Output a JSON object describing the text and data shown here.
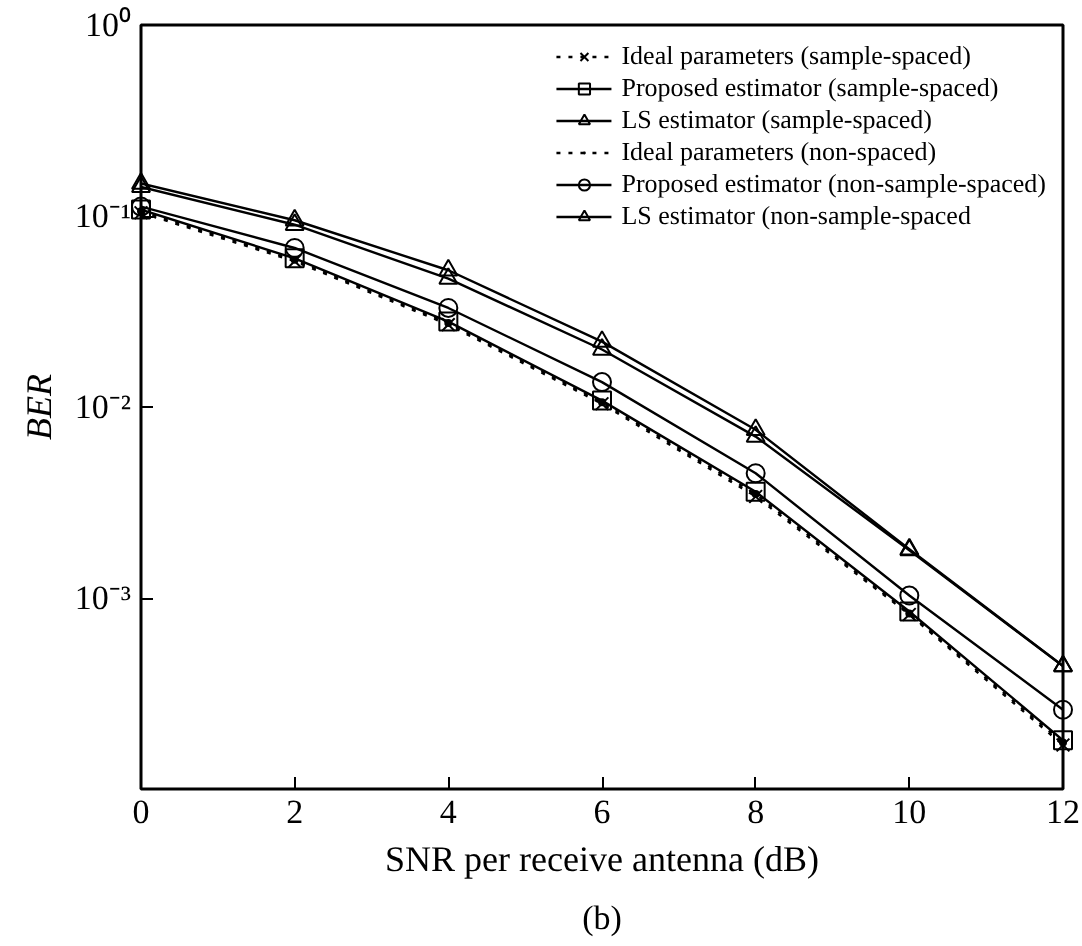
{
  "chart_data": {
    "type": "line",
    "xlabel": "SNR per receive antenna (dB)",
    "ylabel": "BER",
    "annotations": [
      "(b)"
    ],
    "x": [
      0,
      2,
      4,
      6,
      8,
      10,
      12
    ],
    "series": [
      {
        "name": "Ideal parameters (sample-spaced)",
        "color": "#000000",
        "marker": "x",
        "line_style": "dotted",
        "values": [
          0.104,
          0.058,
          0.027,
          0.0104,
          0.0034,
          0.00082,
          0.00017
        ]
      },
      {
        "name": "Proposed estimator (sample-spaced)",
        "color": "#000000",
        "marker": "square",
        "line_style": "solid",
        "values": [
          0.108,
          0.06,
          0.028,
          0.0108,
          0.0036,
          0.00085,
          0.00018
        ]
      },
      {
        "name": "LS estimator (sample-spaced)",
        "color": "#000000",
        "marker": "triangle",
        "line_style": "solid",
        "values": [
          0.142,
          0.09,
          0.047,
          0.02,
          0.007,
          0.00178,
          0.00044
        ]
      },
      {
        "name": "Ideal parameters (non-spaced)",
        "color": "#000000",
        "marker": "dot",
        "line_style": "dotted",
        "values": [
          0.106,
          0.059,
          0.0275,
          0.0106,
          0.0035,
          0.00083,
          0.000175
        ]
      },
      {
        "name": "Proposed estimator (non-sample-spaced)",
        "color": "#000000",
        "marker": "circle",
        "line_style": "solid",
        "values": [
          0.112,
          0.068,
          0.033,
          0.0135,
          0.0045,
          0.00103,
          0.00026
        ]
      },
      {
        "name": "LS estimator (non-sample-spaced",
        "color": "#000000",
        "marker": "triangle",
        "line_style": "solid",
        "values": [
          0.148,
          0.095,
          0.052,
          0.022,
          0.0076,
          0.0018,
          0.00044
        ]
      }
    ],
    "xlim": [
      0,
      12
    ],
    "xticks": [
      0,
      2,
      4,
      6,
      8,
      10,
      12
    ],
    "ylim": [
      0.0001,
      1
    ],
    "yticks": [
      {
        "value": 1,
        "label": "10⁰"
      },
      {
        "value": 0.1,
        "label": "10⁻¹"
      },
      {
        "value": 0.01,
        "label": "10⁻²"
      },
      {
        "value": 0.001,
        "label": "10⁻³"
      }
    ],
    "log": "y",
    "grid": false,
    "legend": "top right"
  }
}
